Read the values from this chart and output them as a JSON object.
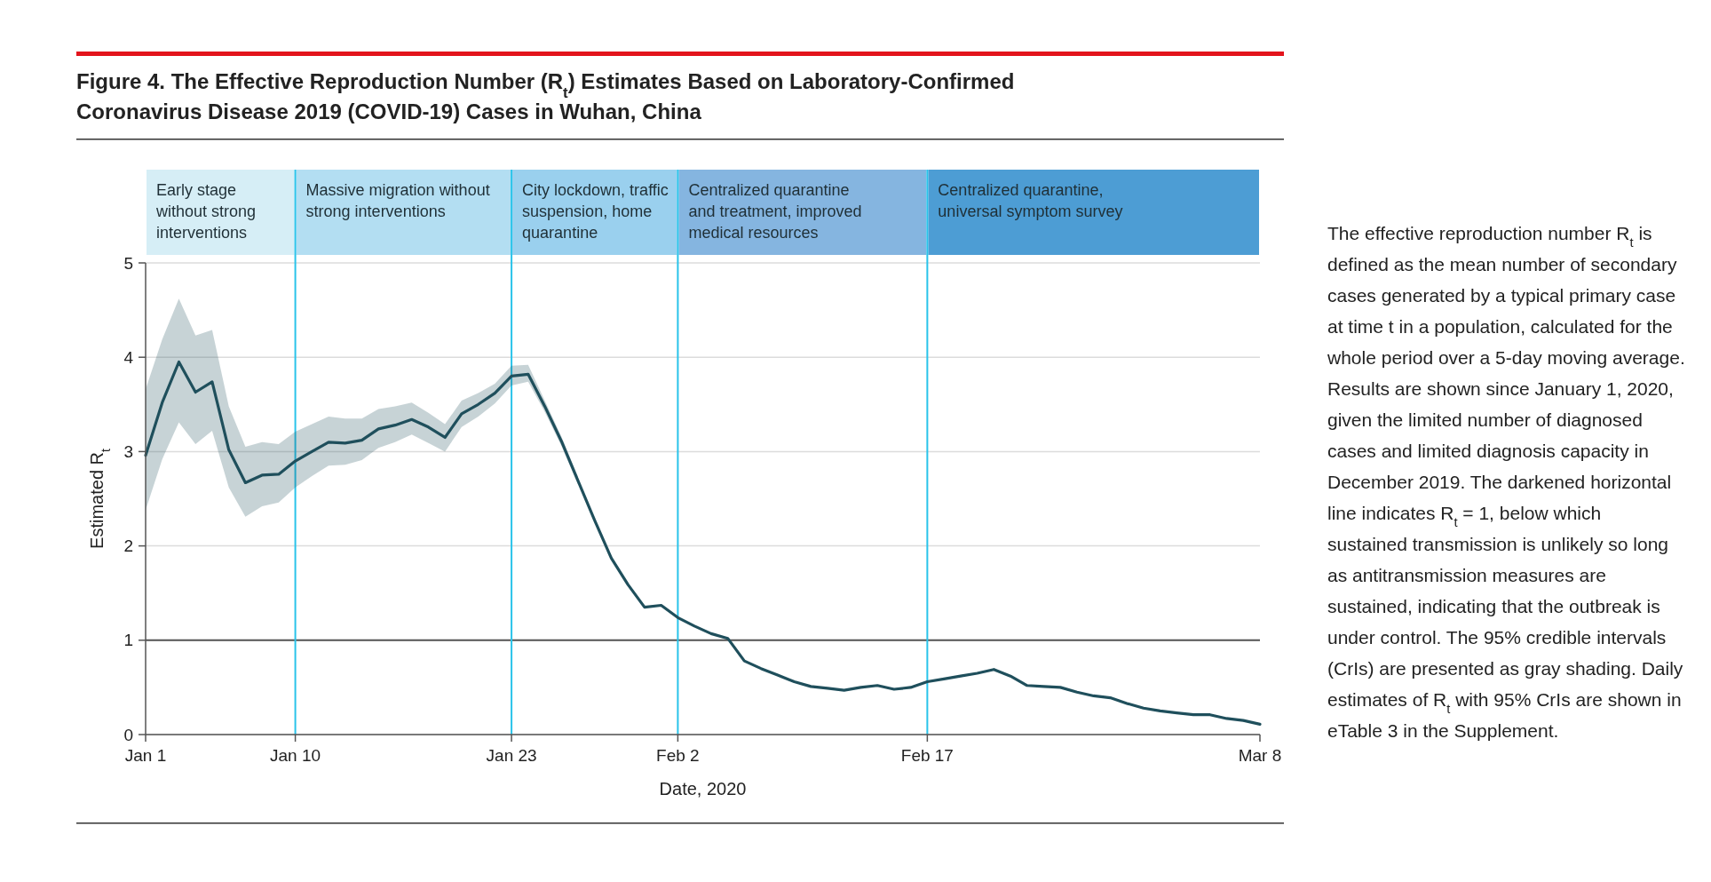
{
  "chart_data": {
    "type": "line",
    "title": "Figure 4. The Effective Reproduction Number (R$_{t}$) Estimates Based on Laboratory-Confirmed Coronavirus Disease 2019 (COVID-19) Cases in Wuhan, China",
    "xlabel": "Date, 2020",
    "ylabel": "Estimated R$_{t}$",
    "annotations": [
      "Early stage without strong interventions",
      "Massive migration without strong interventions",
      "City lockdown, traffic suspension, home quarantine",
      "Centralized quarantine and treatment, improved medical resources",
      "Centralized quarantine, universal symptom survey",
      "The effective reproduction number R$_{t}$ is defined as the mean number of secondary cases generated by a typical primary case at time t in a population, calculated for the whole period over a 5-day moving average. Results are shown since January 1, 2020, given the limited number of diagnosed cases and limited diagnosis capacity in December 2019. The darkened horizontal line indicates R$_{t}$ = 1, below which sustained transmission is unlikely so long as antitransmission measures are sustained, indicating that the outbreak is under control. The 95% credible intervals (CrIs) are presented as gray shading. Daily estimates of R$_{t}$ with 95% CrIs are shown in eTable 3 in the Supplement."
    ],
    "x": [
      "2020-01-01",
      "2020-01-02",
      "2020-01-03",
      "2020-01-04",
      "2020-01-05",
      "2020-01-06",
      "2020-01-07",
      "2020-01-08",
      "2020-01-09",
      "2020-01-10",
      "2020-01-11",
      "2020-01-12",
      "2020-01-13",
      "2020-01-14",
      "2020-01-15",
      "2020-01-16",
      "2020-01-17",
      "2020-01-18",
      "2020-01-19",
      "2020-01-20",
      "2020-01-21",
      "2020-01-22",
      "2020-01-23",
      "2020-01-24",
      "2020-01-25",
      "2020-01-26",
      "2020-01-27",
      "2020-01-28",
      "2020-01-29",
      "2020-01-30",
      "2020-01-31",
      "2020-02-01",
      "2020-02-02",
      "2020-02-03",
      "2020-02-04",
      "2020-02-05",
      "2020-02-06",
      "2020-02-07",
      "2020-02-08",
      "2020-02-09",
      "2020-02-10",
      "2020-02-11",
      "2020-02-12",
      "2020-02-13",
      "2020-02-14",
      "2020-02-15",
      "2020-02-16",
      "2020-02-17",
      "2020-02-18",
      "2020-02-19",
      "2020-02-20",
      "2020-02-21",
      "2020-02-22",
      "2020-02-23",
      "2020-02-24",
      "2020-02-25",
      "2020-02-26",
      "2020-02-27",
      "2020-02-28",
      "2020-02-29",
      "2020-03-01",
      "2020-03-02",
      "2020-03-03",
      "2020-03-04",
      "2020-03-05",
      "2020-03-06",
      "2020-03-07",
      "2020-03-08"
    ],
    "series": [
      {
        "color": "#1f4f5c",
        "values": [
          2.96,
          3.52,
          3.95,
          3.63,
          3.74,
          3.02,
          2.67,
          2.75,
          2.76,
          2.9,
          3.0,
          3.1,
          3.09,
          3.12,
          3.24,
          3.28,
          3.34,
          3.26,
          3.15,
          3.4,
          3.5,
          3.62,
          3.8,
          3.82,
          3.48,
          3.11,
          2.69,
          2.27,
          1.87,
          1.59,
          1.35,
          1.37,
          1.24,
          1.15,
          1.07,
          1.02,
          0.78,
          0.7,
          0.63,
          0.56,
          0.51,
          0.49,
          0.47,
          0.5,
          0.52,
          0.48,
          0.5,
          0.56,
          0.59,
          0.62,
          0.65,
          0.69,
          0.62,
          0.52,
          0.51,
          0.5,
          0.45,
          0.41,
          0.39,
          0.33,
          0.28,
          0.25,
          0.23,
          0.21,
          0.21,
          0.17,
          0.15,
          0.11
        ],
        "upper": [
          3.66,
          4.19,
          4.62,
          4.23,
          4.29,
          3.48,
          3.05,
          3.1,
          3.08,
          3.21,
          3.29,
          3.37,
          3.35,
          3.35,
          3.45,
          3.48,
          3.52,
          3.41,
          3.29,
          3.54,
          3.62,
          3.72,
          3.91,
          3.92,
          3.54,
          3.16,
          2.73,
          null,
          null,
          null,
          null,
          null,
          null,
          null,
          null,
          null,
          null,
          null,
          null,
          null,
          null,
          null,
          null,
          null,
          null,
          null,
          null,
          null,
          null,
          null,
          null,
          null,
          null,
          null,
          null,
          null,
          null,
          null,
          null,
          null,
          null,
          null,
          null,
          null,
          null,
          null,
          null,
          null
        ],
        "lower": [
          2.38,
          2.92,
          3.31,
          3.08,
          3.22,
          2.62,
          2.31,
          2.42,
          2.46,
          2.62,
          2.74,
          2.85,
          2.86,
          2.91,
          3.04,
          3.1,
          3.18,
          3.09,
          3.0,
          3.26,
          3.37,
          3.51,
          3.7,
          3.74,
          3.42,
          3.06,
          2.65,
          null,
          null,
          null,
          null,
          null,
          null,
          null,
          null,
          null,
          null,
          null,
          null,
          null,
          null,
          null,
          null,
          null,
          null,
          null,
          null,
          null,
          null,
          null,
          null,
          null,
          null,
          null,
          null,
          null,
          null,
          null,
          null,
          null,
          null,
          null,
          null,
          null,
          null,
          null,
          null,
          null
        ]
      }
    ],
    "xlim": [
      "2020-01-01",
      "2020-03-08"
    ],
    "xticks": [
      {
        "value": "2020-01-01",
        "label": "Jan 1"
      },
      {
        "value": "2020-01-10",
        "label": "Jan 10"
      },
      {
        "value": "2020-01-23",
        "label": "Jan 23"
      },
      {
        "value": "2020-02-02",
        "label": "Feb 2"
      },
      {
        "value": "2020-02-17",
        "label": "Feb 17"
      },
      {
        "value": "2020-03-08",
        "label": "Mar 8"
      }
    ],
    "ylim": [
      0,
      5
    ],
    "yticks": [
      0,
      1,
      2,
      3,
      4,
      5
    ],
    "grid": "y",
    "line_style": "solid",
    "ref_lines": [
      {
        "axis": "y",
        "value": 1,
        "color": "#555555"
      },
      {
        "axis": "x",
        "value": "2020-01-10",
        "color": "#29c3ea"
      },
      {
        "axis": "x",
        "value": "2020-01-23",
        "color": "#29c3ea"
      },
      {
        "axis": "x",
        "value": "2020-02-02",
        "color": "#29c3ea"
      },
      {
        "axis": "x",
        "value": "2020-02-17",
        "color": "#29c3ea"
      }
    ]
  }
}
